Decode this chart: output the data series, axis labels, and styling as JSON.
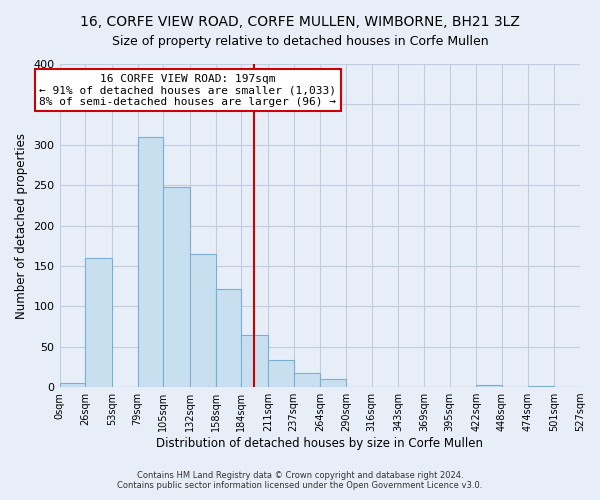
{
  "title": "16, CORFE VIEW ROAD, CORFE MULLEN, WIMBORNE, BH21 3LZ",
  "subtitle": "Size of property relative to detached houses in Corfe Mullen",
  "xlabel": "Distribution of detached houses by size in Corfe Mullen",
  "ylabel": "Number of detached properties",
  "bin_edges": [
    0,
    26,
    53,
    79,
    105,
    132,
    158,
    184,
    211,
    237,
    264,
    290,
    316,
    343,
    369,
    395,
    422,
    448,
    474,
    501,
    527
  ],
  "bin_counts": [
    5,
    160,
    0,
    310,
    248,
    165,
    122,
    65,
    33,
    18,
    10,
    0,
    0,
    0,
    0,
    0,
    2,
    0,
    1,
    0
  ],
  "bar_color": "#c8dff0",
  "bar_edge_color": "#7aafd4",
  "property_size": 197,
  "vline_color": "#cc0000",
  "annotation_box_color": "#ffffff",
  "annotation_box_edge": "#cc0000",
  "annotation_title": "16 CORFE VIEW ROAD: 197sqm",
  "annotation_line1": "← 91% of detached houses are smaller (1,033)",
  "annotation_line2": "8% of semi-detached houses are larger (96) →",
  "ylim": [
    0,
    400
  ],
  "yticks": [
    0,
    50,
    100,
    150,
    200,
    250,
    300,
    350,
    400
  ],
  "xtick_labels": [
    "0sqm",
    "26sqm",
    "53sqm",
    "79sqm",
    "105sqm",
    "132sqm",
    "158sqm",
    "184sqm",
    "211sqm",
    "237sqm",
    "264sqm",
    "290sqm",
    "316sqm",
    "343sqm",
    "369sqm",
    "395sqm",
    "422sqm",
    "448sqm",
    "474sqm",
    "501sqm",
    "527sqm"
  ],
  "footer_line1": "Contains HM Land Registry data © Crown copyright and database right 2024.",
  "footer_line2": "Contains public sector information licensed under the Open Government Licence v3.0.",
  "bg_color": "#e8eef8",
  "plot_bg_color": "#e8eef8",
  "grid_color": "#c0cce0",
  "title_fontsize": 10,
  "subtitle_fontsize": 9
}
